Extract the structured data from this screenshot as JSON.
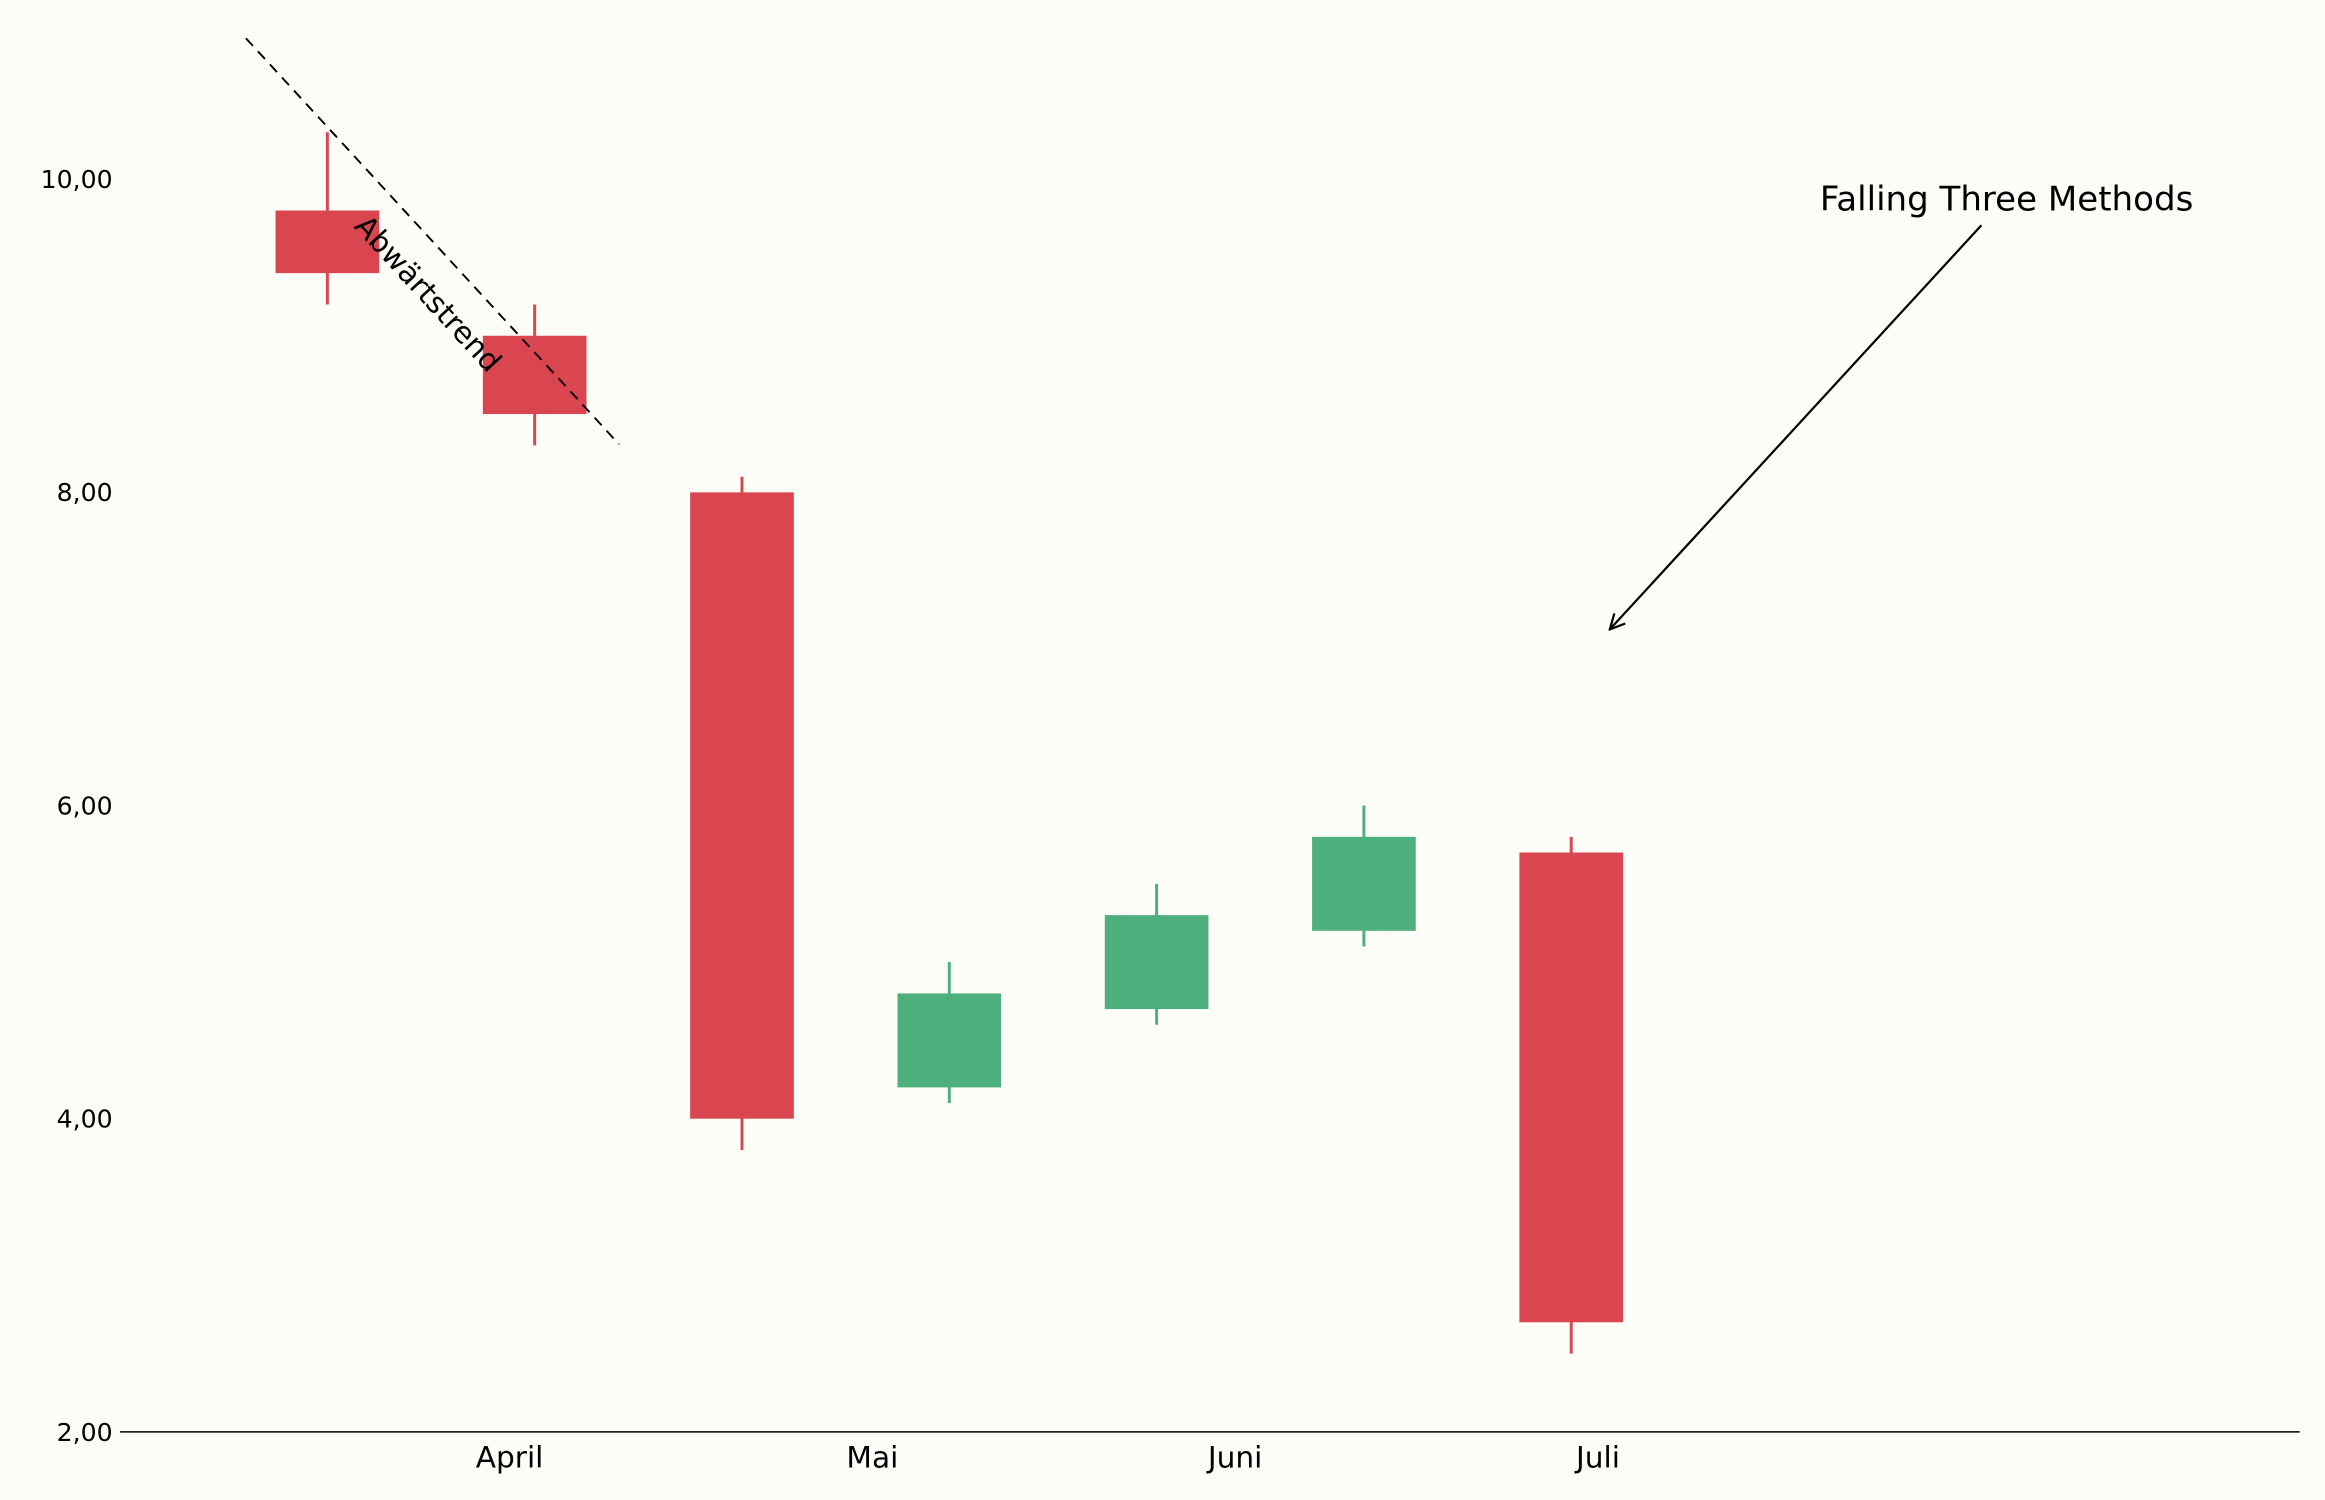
{
  "chart_data": {
    "type": "candlestick",
    "x": [
      0,
      1,
      2,
      3,
      4,
      5,
      6
    ],
    "open": [
      9.8,
      9.0,
      8.0,
      4.2,
      4.7,
      5.2,
      5.7
    ],
    "high": [
      10.3,
      9.2,
      8.1,
      5.0,
      5.5,
      6.0,
      5.8
    ],
    "low": [
      9.2,
      8.3,
      3.8,
      4.1,
      4.6,
      5.1,
      2.5
    ],
    "close": [
      9.4,
      8.5,
      4.0,
      4.8,
      5.3,
      5.8,
      2.7
    ],
    "up_color": "#4daf7c",
    "down_color": "#d9464f",
    "xlim": [
      -1,
      9.514
    ],
    "xticks": [
      {
        "value": 0.879,
        "label": "April"
      },
      {
        "value": 2.629,
        "label": "Mai"
      },
      {
        "value": 4.379,
        "label": "Juni"
      },
      {
        "value": 6.129,
        "label": "Juli"
      }
    ],
    "ylim": [
      2,
      11
    ],
    "yticks": [
      {
        "value": 2,
        "label": "2,00"
      },
      {
        "value": 4,
        "label": "4,00"
      },
      {
        "value": 6,
        "label": "6,00"
      },
      {
        "value": 8,
        "label": "8,00"
      },
      {
        "value": 10,
        "label": "10,00"
      }
    ],
    "trendline": {
      "label": "Abwärtstrend",
      "x": [
        -0.393,
        1.407
      ],
      "y": [
        10.9,
        8.307
      ]
    },
    "annotation": {
      "text": "Falling Three Methods",
      "xy": [
        6.186,
        7.125
      ],
      "xytext": [
        8.1,
        9.8
      ]
    }
  }
}
